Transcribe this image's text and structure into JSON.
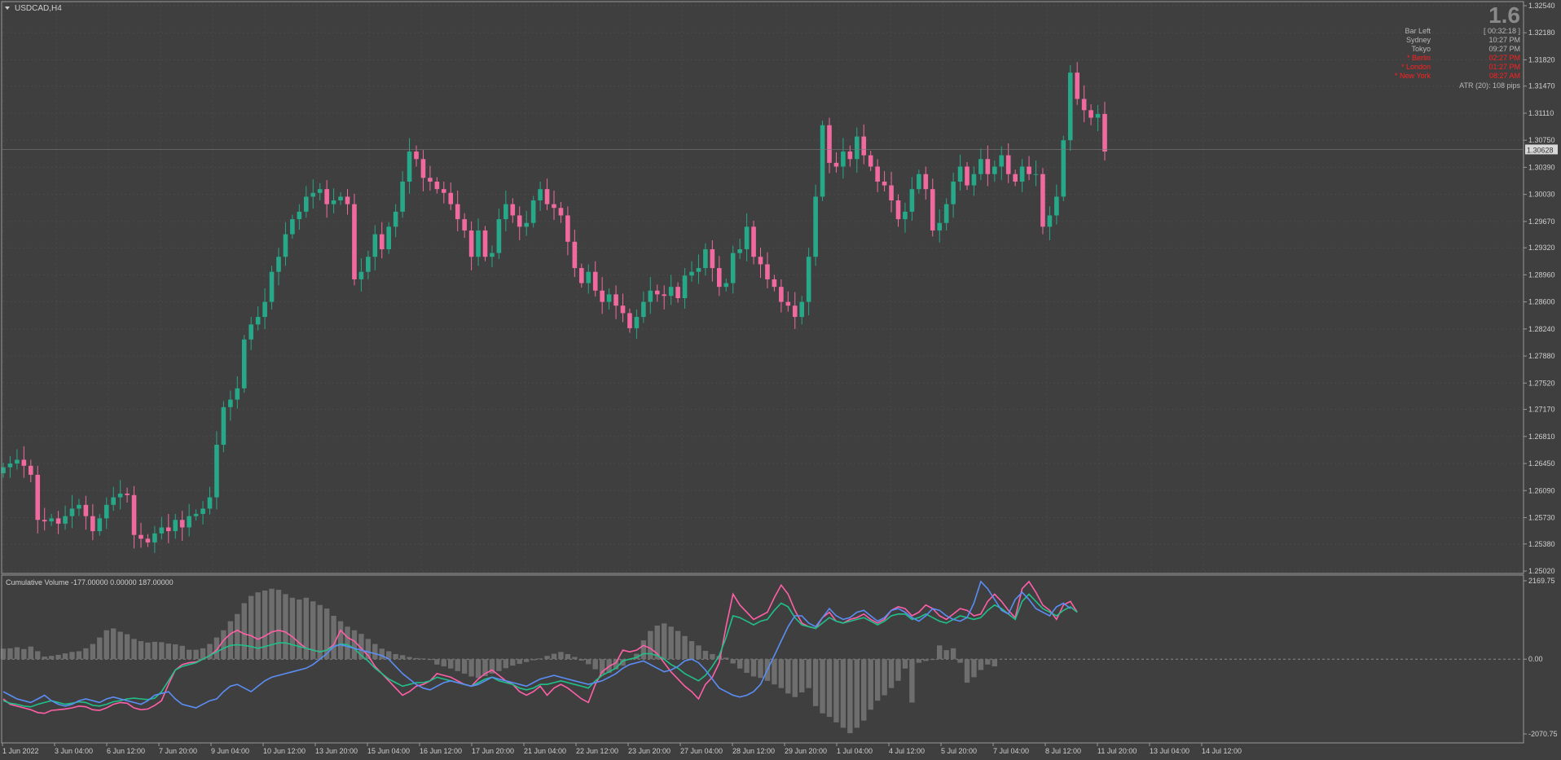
{
  "header": {
    "symbol": "USDCAD,H4"
  },
  "info_panel": {
    "spread": "1.6",
    "rows": [
      {
        "label": "Bar Left",
        "value": "[ 00:32:18 ]",
        "color": "#b8b8b8"
      },
      {
        "label": "Sydney",
        "value": "10:27 PM",
        "color": "#b8b8b8"
      },
      {
        "label": "Tokyo",
        "value": "09:27 PM",
        "color": "#b8b8b8"
      },
      {
        "label": "* Berlin",
        "value": "02:27 PM",
        "color": "#ff2020"
      },
      {
        "label": "* London",
        "value": "01:27 PM",
        "color": "#ff2020"
      },
      {
        "label": "* New York",
        "value": "08:27 AM",
        "color": "#ff2020"
      }
    ],
    "atr": "ATR (20): 108 pips"
  },
  "indicator": {
    "label": "Cumulative Volume -177.00000 0.00000 187.00000",
    "scale_top": "2169.75",
    "scale_zero": "0.00",
    "scale_bottom": "-2070.75"
  },
  "colors": {
    "background": "#3f3f3f",
    "bull": "#26a889",
    "bear": "#f06aa0",
    "histogram": "#6e6e6e",
    "line_pink": "#ff5fa8",
    "line_green": "#20c08a",
    "line_blue": "#5b8ef5"
  },
  "chart_data": [
    {
      "type": "candlestick",
      "current_price": "1.30628",
      "y_ticks": [
        "1.32540",
        "1.32180",
        "1.31820",
        "1.31470",
        "1.31110",
        "1.30750",
        "1.30390",
        "1.30030",
        "1.29670",
        "1.29320",
        "1.28960",
        "1.28600",
        "1.28240",
        "1.27880",
        "1.27520",
        "1.27170",
        "1.26810",
        "1.26450",
        "1.26090",
        "1.25730",
        "1.25380",
        "1.25020"
      ],
      "ylim": [
        1.2502,
        1.3254
      ],
      "x_tick_labels": [
        "1 Jun 2022",
        "3 Jun 04:00",
        "6 Jun 12:00",
        "7 Jun 20:00",
        "9 Jun 04:00",
        "10 Jun 12:00",
        "13 Jun 20:00",
        "15 Jun 04:00",
        "16 Jun 12:00",
        "17 Jun 20:00",
        "21 Jun 04:00",
        "22 Jun 12:00",
        "23 Jun 20:00",
        "27 Jun 04:00",
        "28 Jun 12:00",
        "29 Jun 20:00",
        "1 Jul 04:00",
        "4 Jul 12:00",
        "5 Jul 20:00",
        "7 Jul 04:00",
        "8 Jul 12:00",
        "11 Jul 20:00",
        "13 Jul 04:00",
        "14 Jul 12:00"
      ],
      "close": [
        1.264,
        1.2645,
        1.265,
        1.2642,
        1.263,
        1.257,
        1.2568,
        1.2572,
        1.2565,
        1.2575,
        1.2585,
        1.259,
        1.2575,
        1.2555,
        1.2572,
        1.259,
        1.26,
        1.2605,
        1.2603,
        1.255,
        1.2545,
        1.254,
        1.2552,
        1.256,
        1.2555,
        1.257,
        1.256,
        1.2575,
        1.2578,
        1.2585,
        1.26,
        1.267,
        1.272,
        1.273,
        1.2745,
        1.281,
        1.283,
        1.284,
        1.286,
        1.29,
        1.292,
        1.295,
        1.297,
        1.298,
        1.3,
        1.3005,
        1.301,
        1.299,
        1.2995,
        1.3,
        1.299,
        1.289,
        1.29,
        1.292,
        1.295,
        1.293,
        1.296,
        1.298,
        1.302,
        1.306,
        1.305,
        1.3025,
        1.302,
        1.301,
        1.3005,
        1.299,
        1.297,
        1.2955,
        1.292,
        1.2955,
        1.292,
        1.2925,
        1.297,
        1.299,
        1.2975,
        1.296,
        1.2965,
        1.2995,
        1.301,
        1.299,
        1.2985,
        1.2975,
        1.294,
        1.2905,
        1.2885,
        1.29,
        1.2875,
        1.286,
        1.287,
        1.2855,
        1.2845,
        1.2825,
        1.284,
        1.286,
        1.2875,
        1.287,
        1.2868,
        1.288,
        1.2865,
        1.2895,
        1.29,
        1.2905,
        1.293,
        1.2905,
        1.288,
        1.2885,
        1.2925,
        1.293,
        1.296,
        1.292,
        1.291,
        1.289,
        1.288,
        1.286,
        1.2855,
        1.284,
        1.286,
        1.292,
        1.3,
        1.3095,
        1.3045,
        1.304,
        1.306,
        1.305,
        1.308,
        1.3055,
        1.304,
        1.302,
        1.3015,
        1.2995,
        1.297,
        1.298,
        1.301,
        1.303,
        1.301,
        1.2955,
        1.2965,
        1.299,
        1.302,
        1.304,
        1.3015,
        1.303,
        1.305,
        1.303,
        1.304,
        1.3055,
        1.303,
        1.302,
        1.304,
        1.303,
        1.303,
        1.296,
        1.2975,
        1.3,
        1.3075,
        1.3165,
        1.313,
        1.3115,
        1.3105,
        1.311,
        1.306
      ]
    },
    {
      "type": "histogram_and_lines",
      "ylim": [
        -2070.75,
        2169.75
      ],
      "histogram": [
        290,
        300,
        330,
        280,
        350,
        220,
        70,
        90,
        120,
        160,
        200,
        220,
        300,
        420,
        600,
        800,
        850,
        760,
        690,
        560,
        500,
        460,
        480,
        470,
        430,
        410,
        370,
        260,
        260,
        300,
        420,
        600,
        800,
        1050,
        1250,
        1550,
        1750,
        1850,
        1900,
        1950,
        1920,
        1800,
        1700,
        1650,
        1700,
        1600,
        1500,
        1400,
        1200,
        1050,
        900,
        800,
        700,
        560,
        420,
        290,
        220,
        140,
        110,
        60,
        30,
        20,
        0,
        -150,
        -200,
        -260,
        -330,
        -400,
        -480,
        -520,
        -470,
        -400,
        -330,
        -250,
        -180,
        -130,
        -80,
        -30,
        20,
        90,
        150,
        200,
        140,
        60,
        -40,
        -140,
        -280,
        -410,
        -380,
        -280,
        -180,
        0,
        150,
        520,
        780,
        930,
        990,
        900,
        780,
        640,
        500,
        380,
        230,
        140,
        90,
        40,
        -120,
        -260,
        -380,
        -480,
        -520,
        -600,
        -700,
        -800,
        -950,
        -1050,
        -920,
        -800,
        -1300,
        -1500,
        -1600,
        -1750,
        -1900,
        -2050,
        -1900,
        -1700,
        -1400,
        -1150,
        -1000,
        -800,
        -600,
        -260,
        -1200,
        -100,
        -50,
        0,
        380,
        250,
        300,
        -100,
        -650,
        -500,
        -300,
        -150,
        -200
      ],
      "series": [
        {
          "values": [
            -1100,
            -1250,
            -1300,
            -1350,
            -1400,
            -1480,
            -1500,
            -1420,
            -1400,
            -1380,
            -1350,
            -1300,
            -1320,
            -1400,
            -1420,
            -1350,
            -1250,
            -1200,
            -1220,
            -1350,
            -1400,
            -1380,
            -1280,
            -1150,
            -700,
            -300,
            -150,
            -100,
            -80,
            0,
            100,
            250,
            520,
            700,
            800,
            700,
            650,
            550,
            640,
            750,
            800,
            750,
            620,
            450,
            300,
            250,
            200,
            250,
            400,
            800,
            600,
            500,
            300,
            100,
            -200,
            -400,
            -600,
            -800,
            -1000,
            -900,
            -750,
            -700,
            -600,
            -400,
            -450,
            -500,
            -600,
            -700,
            -750,
            -550,
            -400,
            -300,
            -450,
            -600,
            -700,
            -900,
            -1000,
            -900,
            -750,
            -1000,
            -800,
            -700,
            -800,
            -950,
            -1100,
            -1200,
            -700,
            -350,
            -200,
            -100,
            250,
            200,
            250,
            380,
            300,
            150,
            -100,
            -350,
            -550,
            -750,
            -900,
            -1100,
            -700,
            -500,
            -100,
            900,
            1800,
            1500,
            1300,
            1100,
            1200,
            1300,
            1700,
            2050,
            1800,
            1350,
            1000,
            900,
            850,
            1150,
            1300,
            1050,
            1000,
            1100,
            1150,
            1250,
            1100,
            1000,
            1100,
            1350,
            1450,
            1400,
            1200,
            1300,
            1500,
            1400,
            1200,
            1100,
            1250,
            1400,
            1350,
            1200,
            1250,
            1600,
            1800,
            1600,
            1350,
            1150,
            1950,
            2150,
            1850,
            1500,
            1350,
            1100,
            1500,
            1600,
            1300
          ]
        },
        {
          "values": [
            -1150,
            -1220,
            -1250,
            -1300,
            -1320,
            -1250,
            -1200,
            -1150,
            -1200,
            -1250,
            -1220,
            -1180,
            -1200,
            -1280,
            -1300,
            -1250,
            -1180,
            -1150,
            -1100,
            -1080,
            -1100,
            -1120,
            -1080,
            -900,
            -600,
            -300,
            -200,
            -150,
            -100,
            0,
            100,
            200,
            300,
            380,
            400,
            380,
            350,
            300,
            350,
            400,
            450,
            450,
            400,
            350,
            300,
            250,
            200,
            250,
            350,
            420,
            400,
            300,
            100,
            -50,
            -250,
            -400,
            -550,
            -650,
            -750,
            -700,
            -650,
            -650,
            -600,
            -500,
            -550,
            -600,
            -650,
            -700,
            -750,
            -650,
            -550,
            -500,
            -600,
            -650,
            -700,
            -800,
            -850,
            -800,
            -700,
            -700,
            -650,
            -600,
            -650,
            -700,
            -750,
            -800,
            -600,
            -450,
            -350,
            -250,
            -50,
            0,
            50,
            150,
            150,
            100,
            0,
            -150,
            -250,
            -400,
            -500,
            -600,
            -450,
            -200,
            100,
            600,
            1200,
            1150,
            1050,
            950,
            1050,
            1100,
            1350,
            1550,
            1450,
            1150,
            950,
            900,
            850,
            1000,
            1150,
            1050,
            1000,
            1050,
            1100,
            1150,
            1050,
            950,
            1050,
            1200,
            1250,
            1250,
            1100,
            1150,
            1250,
            1150,
            1050,
            1000,
            1100,
            1200,
            1150,
            1100,
            1150,
            1350,
            1500,
            1400,
            1250,
            1100,
            1600,
            1800,
            1600,
            1400,
            1300,
            1200,
            1350,
            1450,
            1300
          ]
        },
        {
          "values": [
            -900,
            -1000,
            -1100,
            -1150,
            -1200,
            -1100,
            -1000,
            -1150,
            -1250,
            -1300,
            -1250,
            -1150,
            -1100,
            -1150,
            -1200,
            -1100,
            -1050,
            -1100,
            -1150,
            -1200,
            -1250,
            -1150,
            -1000,
            -950,
            -900,
            -1100,
            -1250,
            -1300,
            -1350,
            -1250,
            -1150,
            -1100,
            -900,
            -750,
            -700,
            -800,
            -900,
            -750,
            -600,
            -500,
            -450,
            -400,
            -350,
            -300,
            -250,
            -150,
            0,
            150,
            350,
            400,
            350,
            300,
            250,
            200,
            150,
            100,
            0,
            -200,
            -400,
            -550,
            -700,
            -800,
            -850,
            -750,
            -650,
            -600,
            -650,
            -700,
            -750,
            -700,
            -600,
            -500,
            -550,
            -600,
            -650,
            -700,
            -750,
            -650,
            -550,
            -500,
            -450,
            -500,
            -550,
            -600,
            -650,
            -700,
            -650,
            -600,
            -500,
            -400,
            -250,
            -150,
            -100,
            -50,
            -150,
            -250,
            -350,
            -300,
            -200,
            -50,
            0,
            -100,
            -300,
            -550,
            -800,
            -900,
            -1000,
            -1050,
            -1000,
            -900,
            -700,
            -300,
            100,
            500,
            900,
            1200,
            1200,
            1000,
            900,
            1150,
            1400,
            1200,
            1100,
            1150,
            1300,
            1350,
            1200,
            1050,
            1150,
            1350,
            1400,
            1300,
            1150,
            1050,
            1200,
            1400,
            1350,
            1200,
            1100,
            1050,
            1150,
            1550,
            2150,
            1950,
            1650,
            1350,
            1250,
            1650,
            1850,
            1650,
            1400,
            1300,
            1200,
            1450,
            1550,
            1400
          ]
        }
      ]
    }
  ]
}
